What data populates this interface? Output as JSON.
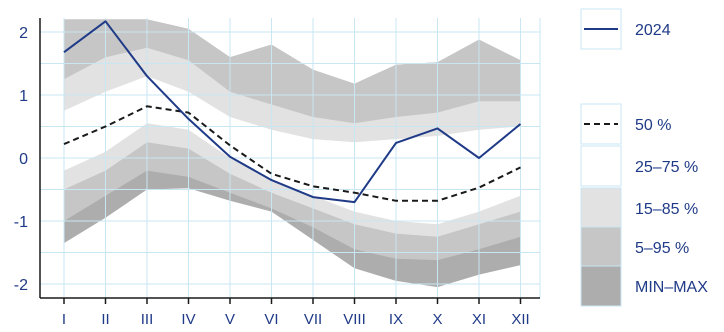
{
  "chart_data": {
    "type": "area",
    "categories": [
      "I",
      "II",
      "III",
      "IV",
      "V",
      "VI",
      "VII",
      "VIII",
      "IX",
      "X",
      "XI",
      "XII"
    ],
    "y_ticks": [
      "2",
      "1",
      "0",
      "-1",
      "-2"
    ],
    "ylim": [
      -2.2,
      2.2
    ],
    "grid": true,
    "legend_position": "right",
    "colors": {
      "minmax": "#adadad",
      "p5_95": "#c6c6c6",
      "p15_85": "#e2e2e2",
      "p25_75": "#ffffff",
      "median": "#1a1a1a",
      "line2024": "#1f3a87",
      "grid": "#c9e6f3",
      "axis": "#1a1a1a"
    },
    "bands": [
      {
        "name": "MIN–MAX",
        "key": "minmax",
        "low": [
          -1.35,
          -0.95,
          -0.5,
          -0.48,
          -0.68,
          -0.85,
          -1.3,
          -1.75,
          -1.95,
          -2.05,
          -1.85,
          -1.7
        ],
        "high": [
          2.2,
          2.2,
          2.2,
          2.05,
          1.6,
          1.8,
          1.4,
          1.18,
          1.48,
          1.52,
          1.88,
          1.55
        ]
      },
      {
        "name": "5–95 %",
        "key": "p5_95",
        "low": [
          -1.0,
          -0.6,
          -0.2,
          -0.3,
          -0.55,
          -0.8,
          -1.1,
          -1.45,
          -1.6,
          -1.62,
          -1.45,
          -1.25
        ]
      },
      {
        "name": "15–85 %",
        "key": "p15_85",
        "low": [
          -0.5,
          -0.2,
          0.25,
          0.15,
          -0.25,
          -0.55,
          -0.8,
          -1.05,
          -1.2,
          -1.25,
          -1.05,
          -0.85
        ],
        "high": [
          1.25,
          1.6,
          1.75,
          1.55,
          1.05,
          0.85,
          0.65,
          0.55,
          0.65,
          0.72,
          0.9,
          0.9
        ]
      },
      {
        "name": "25–75 %",
        "key": "p25_75",
        "low": [
          -0.2,
          0.1,
          0.55,
          0.45,
          0.0,
          -0.35,
          -0.6,
          -0.85,
          -1.0,
          -1.05,
          -0.85,
          -0.6
        ],
        "high": [
          0.75,
          1.05,
          1.3,
          1.05,
          0.65,
          0.45,
          0.3,
          0.25,
          0.3,
          0.35,
          0.45,
          0.5
        ]
      }
    ],
    "series": [
      {
        "name": "50 %",
        "key": "median",
        "style": "dashed",
        "values": [
          0.22,
          0.5,
          0.82,
          0.72,
          0.2,
          -0.25,
          -0.45,
          -0.55,
          -0.68,
          -0.68,
          -0.47,
          -0.15
        ]
      },
      {
        "name": "2024",
        "key": "line2024",
        "style": "solid",
        "values": [
          1.68,
          2.17,
          1.3,
          0.62,
          0.02,
          -0.35,
          -0.62,
          -0.7,
          0.24,
          0.47,
          0.0,
          0.54
        ]
      }
    ],
    "legend": {
      "series_label": "2024",
      "median_label": "50 %",
      "p25_75_label": "25–75 %",
      "p15_85_label": "15–85 %",
      "p5_95_label": "5–95 %",
      "minmax_label": "MIN–MAX"
    }
  }
}
